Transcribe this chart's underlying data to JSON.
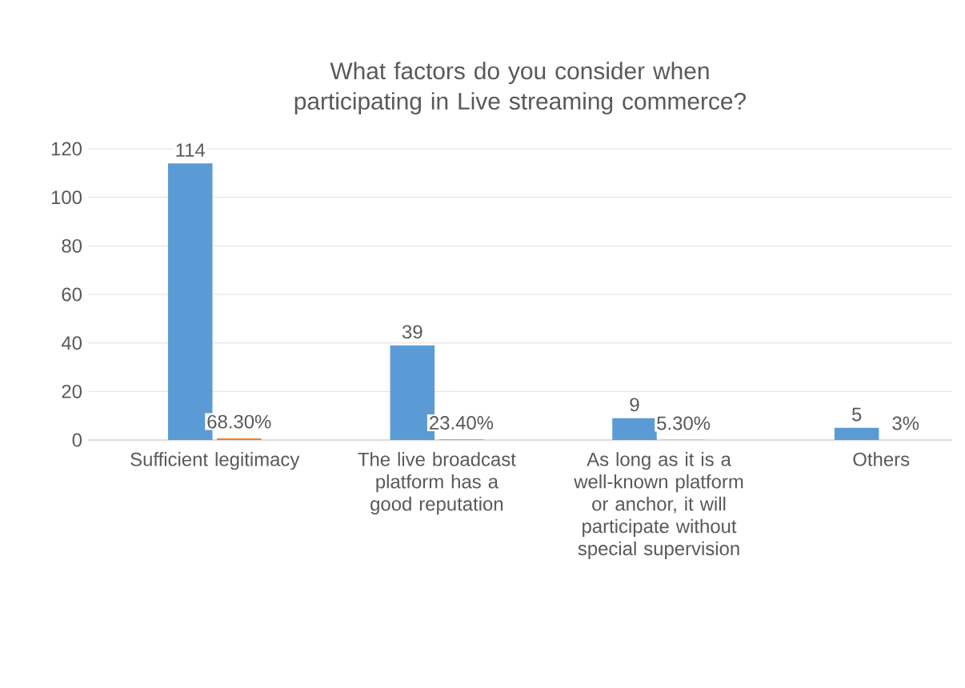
{
  "chart_data": {
    "type": "bar",
    "title": "What factors do you consider when participating in Live streaming commerce?",
    "categories": [
      "Sufficient legitimacy",
      "The live broadcast platform has a good reputation",
      "As long as it is a well-known platform or anchor, it will participate without special supervision",
      "Others"
    ],
    "series": [
      {
        "color": "#5b9bd5",
        "values": [
          114,
          39,
          9,
          5
        ],
        "value_labels": [
          "114",
          "39",
          "9",
          "5"
        ]
      },
      {
        "color": "#ed7d31",
        "values": [
          0.683,
          0.234,
          0.053,
          0.03
        ],
        "value_labels": [
          "68.30%",
          "23.40%",
          "5.30%",
          "3%"
        ]
      }
    ],
    "ylim": [
      0,
      120
    ],
    "yticks": [
      0,
      20,
      40,
      60,
      80,
      100,
      120
    ],
    "grid": "y"
  }
}
